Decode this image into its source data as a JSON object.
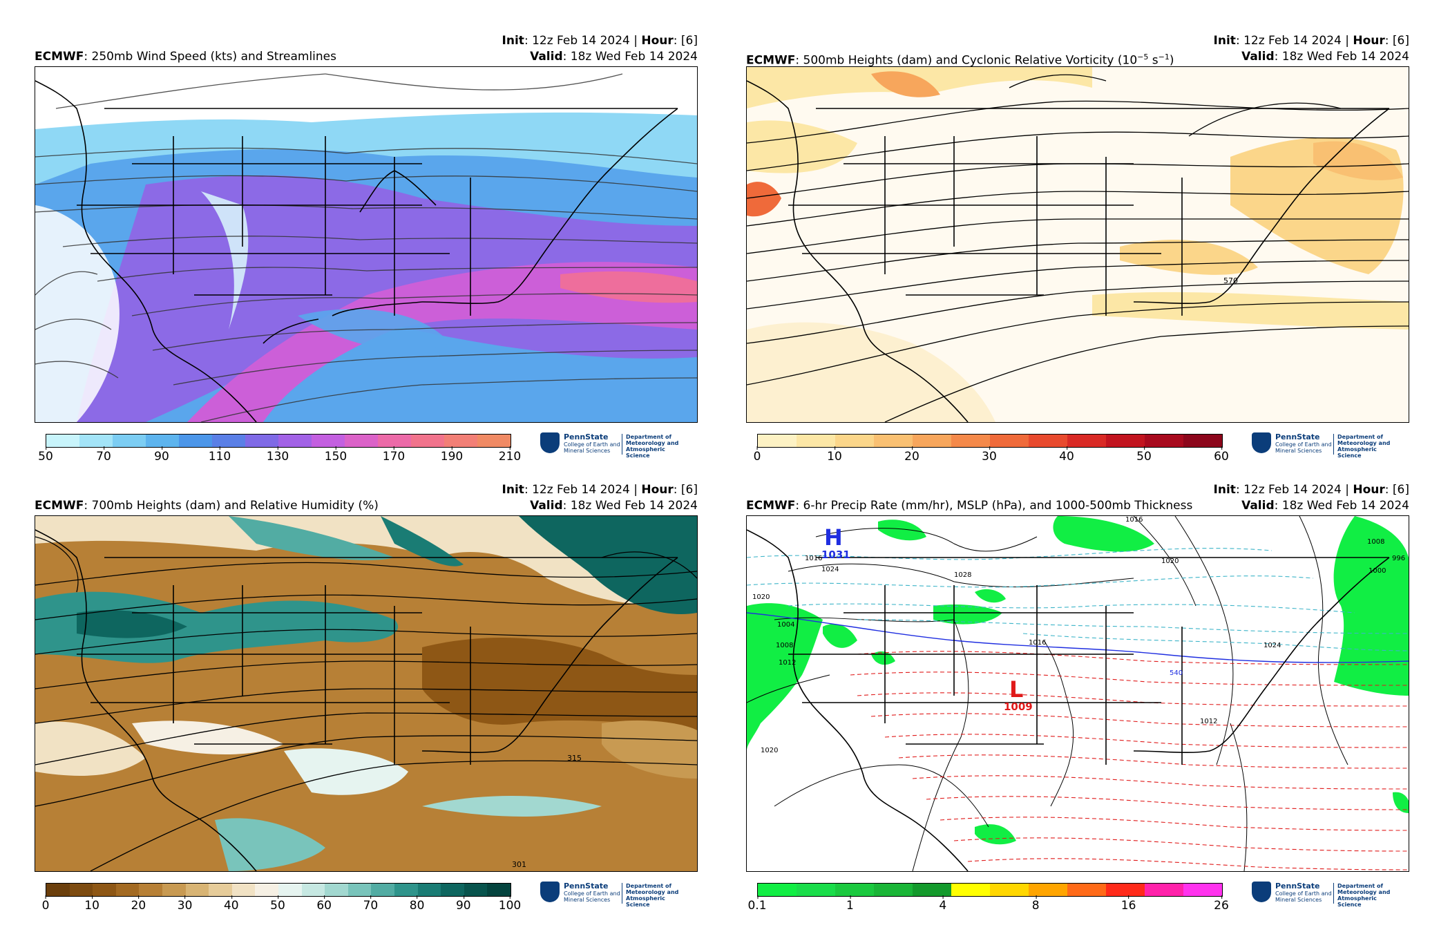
{
  "panels": [
    {
      "model": "ECMWF",
      "title": ": 250mb Wind Speed (kts) and Streamlines",
      "init_label": "Init",
      "init_value": ": 12z Feb 14 2024 | ",
      "hour_label": "Hour",
      "hour_value": ": [6]",
      "valid_label": "Valid",
      "valid_value": ": 18z Wed Feb 14 2024",
      "colorbar": {
        "ticks": [
          "50",
          "70",
          "90",
          "110",
          "130",
          "150",
          "170",
          "190",
          "210"
        ],
        "colors": [
          "#c8f4fb",
          "#a3e4f8",
          "#7ccdf3",
          "#5db4ee",
          "#4c96e9",
          "#5a7fe6",
          "#7f6ae6",
          "#a262e6",
          "#c35fe0",
          "#db62c8",
          "#ec6aa8",
          "#f1738c",
          "#f27f76",
          "#f08a64"
        ]
      }
    },
    {
      "model": "ECMWF",
      "title": ": 500mb Heights (dam) and Cyclonic Relative Vorticity (10",
      "title_sup": "−5",
      "title_tail": " s",
      "title_sup2": "−1",
      "title_close": ")",
      "init_label": "Init",
      "init_value": ": 12z Feb 14 2024 | ",
      "hour_label": "Hour",
      "hour_value": ": [6]",
      "valid_label": "Valid",
      "valid_value": ": 18z Wed Feb 14 2024",
      "contour_label": "570",
      "colorbar": {
        "ticks": [
          "0",
          "10",
          "20",
          "30",
          "40",
          "50",
          "60"
        ],
        "colors": [
          "#fdf2c4",
          "#fce7a6",
          "#fbd68a",
          "#f9c072",
          "#f7a65c",
          "#f4894a",
          "#ef6a3a",
          "#e84a2e",
          "#d92a25",
          "#c2141f",
          "#a80a1e",
          "#8c061b"
        ]
      }
    },
    {
      "model": "ECMWF",
      "title": ": 700mb Heights (dam) and Relative Humidity (%)",
      "init_label": "Init",
      "init_value": ": 12z Feb 14 2024 | ",
      "hour_label": "Hour",
      "hour_value": ": [6]",
      "valid_label": "Valid",
      "valid_value": ": 18z Wed Feb 14 2024",
      "contour_labels": [
        "315",
        "301"
      ],
      "colorbar": {
        "ticks": [
          "0",
          "10",
          "20",
          "30",
          "40",
          "50",
          "60",
          "70",
          "80",
          "90",
          "100"
        ],
        "colors": [
          "#6b3f0c",
          "#7d4b10",
          "#8e5715",
          "#a36a22",
          "#b78036",
          "#c89a52",
          "#d8b474",
          "#e6cc9a",
          "#f1e2c4",
          "#f6f0e4",
          "#e6f4f0",
          "#c6e8e2",
          "#a2d8d0",
          "#79c4bb",
          "#52aca3",
          "#2f948b",
          "#1a7c74",
          "#0e665f",
          "#08544d",
          "#04443e"
        ]
      }
    },
    {
      "model": "ECMWF",
      "title": ": 6-hr Precip Rate (mm/hr), MSLP (hPa), and 1000-500mb Thickness",
      "init_label": "Init",
      "init_value": ": 12z Feb 14 2024 | ",
      "hour_label": "Hour",
      "hour_value": ": [6]",
      "valid_label": "Valid",
      "valid_value": ": 18z Wed Feb 14 2024",
      "high_letter": "H",
      "high_value": "1031",
      "low_letter": "L",
      "low_value": "1009",
      "isobar_labels": [
        "1016",
        "1024",
        "1028",
        "1020",
        "1016",
        "1020",
        "1024",
        "1012",
        "1008",
        "1004",
        "1020",
        "1008",
        "1000",
        "996",
        "1016",
        "540",
        "1012"
      ],
      "colorbar": {
        "ticks": [
          "0.1",
          "1",
          "4",
          "8",
          "16",
          "26"
        ],
        "colors": [
          "#11ee44",
          "#1add4a",
          "#1bc93f",
          "#1ab537",
          "#149a2c",
          "#ffff00",
          "#ffd700",
          "#ffa500",
          "#ff6a18",
          "#ff2a1a",
          "#ff22aa",
          "#ff33ee"
        ]
      }
    }
  ],
  "logo": {
    "university": "PennState",
    "college": "College of Earth and Mineral Sciences",
    "department": "Department of Meteorology and Atmospheric Science"
  }
}
